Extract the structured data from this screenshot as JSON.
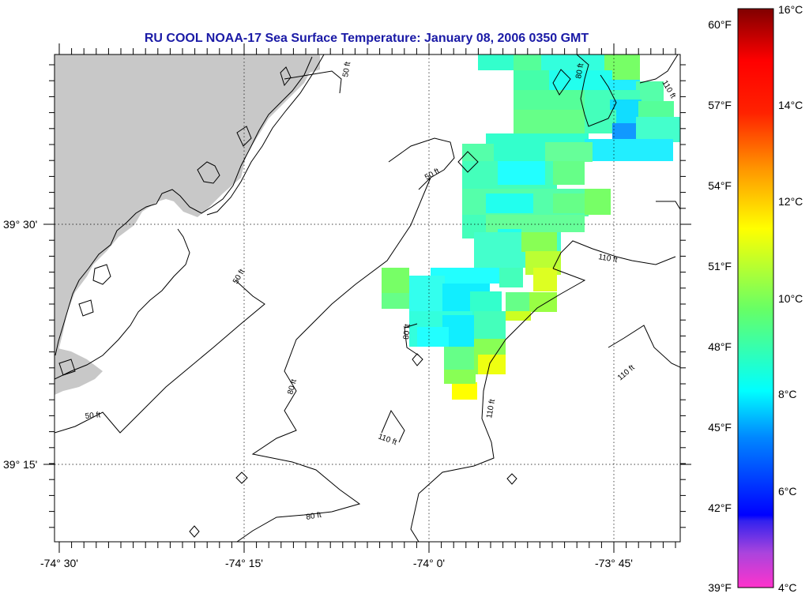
{
  "title": "RU COOL  NOAA-17  Sea Surface Temperature:  January 08, 2006 0350 GMT",
  "axes": {
    "lon_labels": [
      "-74° 30'",
      "-74° 15'",
      "-74° 0'",
      "-73° 45'"
    ],
    "lat_labels": [
      "39° 30'",
      "39° 15'"
    ]
  },
  "contour_labels": [
    "50 ft",
    "50 ft",
    "50 ft",
    "50 ft",
    "80 ft",
    "80 ft",
    "80 ft",
    "80 ft",
    "110 ft",
    "110 ft",
    "110 ft",
    "110 ft",
    "110 ft"
  ],
  "colorbar": {
    "f_labels": [
      "60°F",
      "57°F",
      "54°F",
      "51°F",
      "48°F",
      "45°F",
      "42°F",
      "39°F"
    ],
    "c_labels": [
      "16°C",
      "14°C",
      "12°C",
      "10°C",
      "8°C",
      "6°C",
      "4°C"
    ]
  },
  "colors": {
    "title": "#1a1aa6",
    "land": "#c8c8c8"
  }
}
